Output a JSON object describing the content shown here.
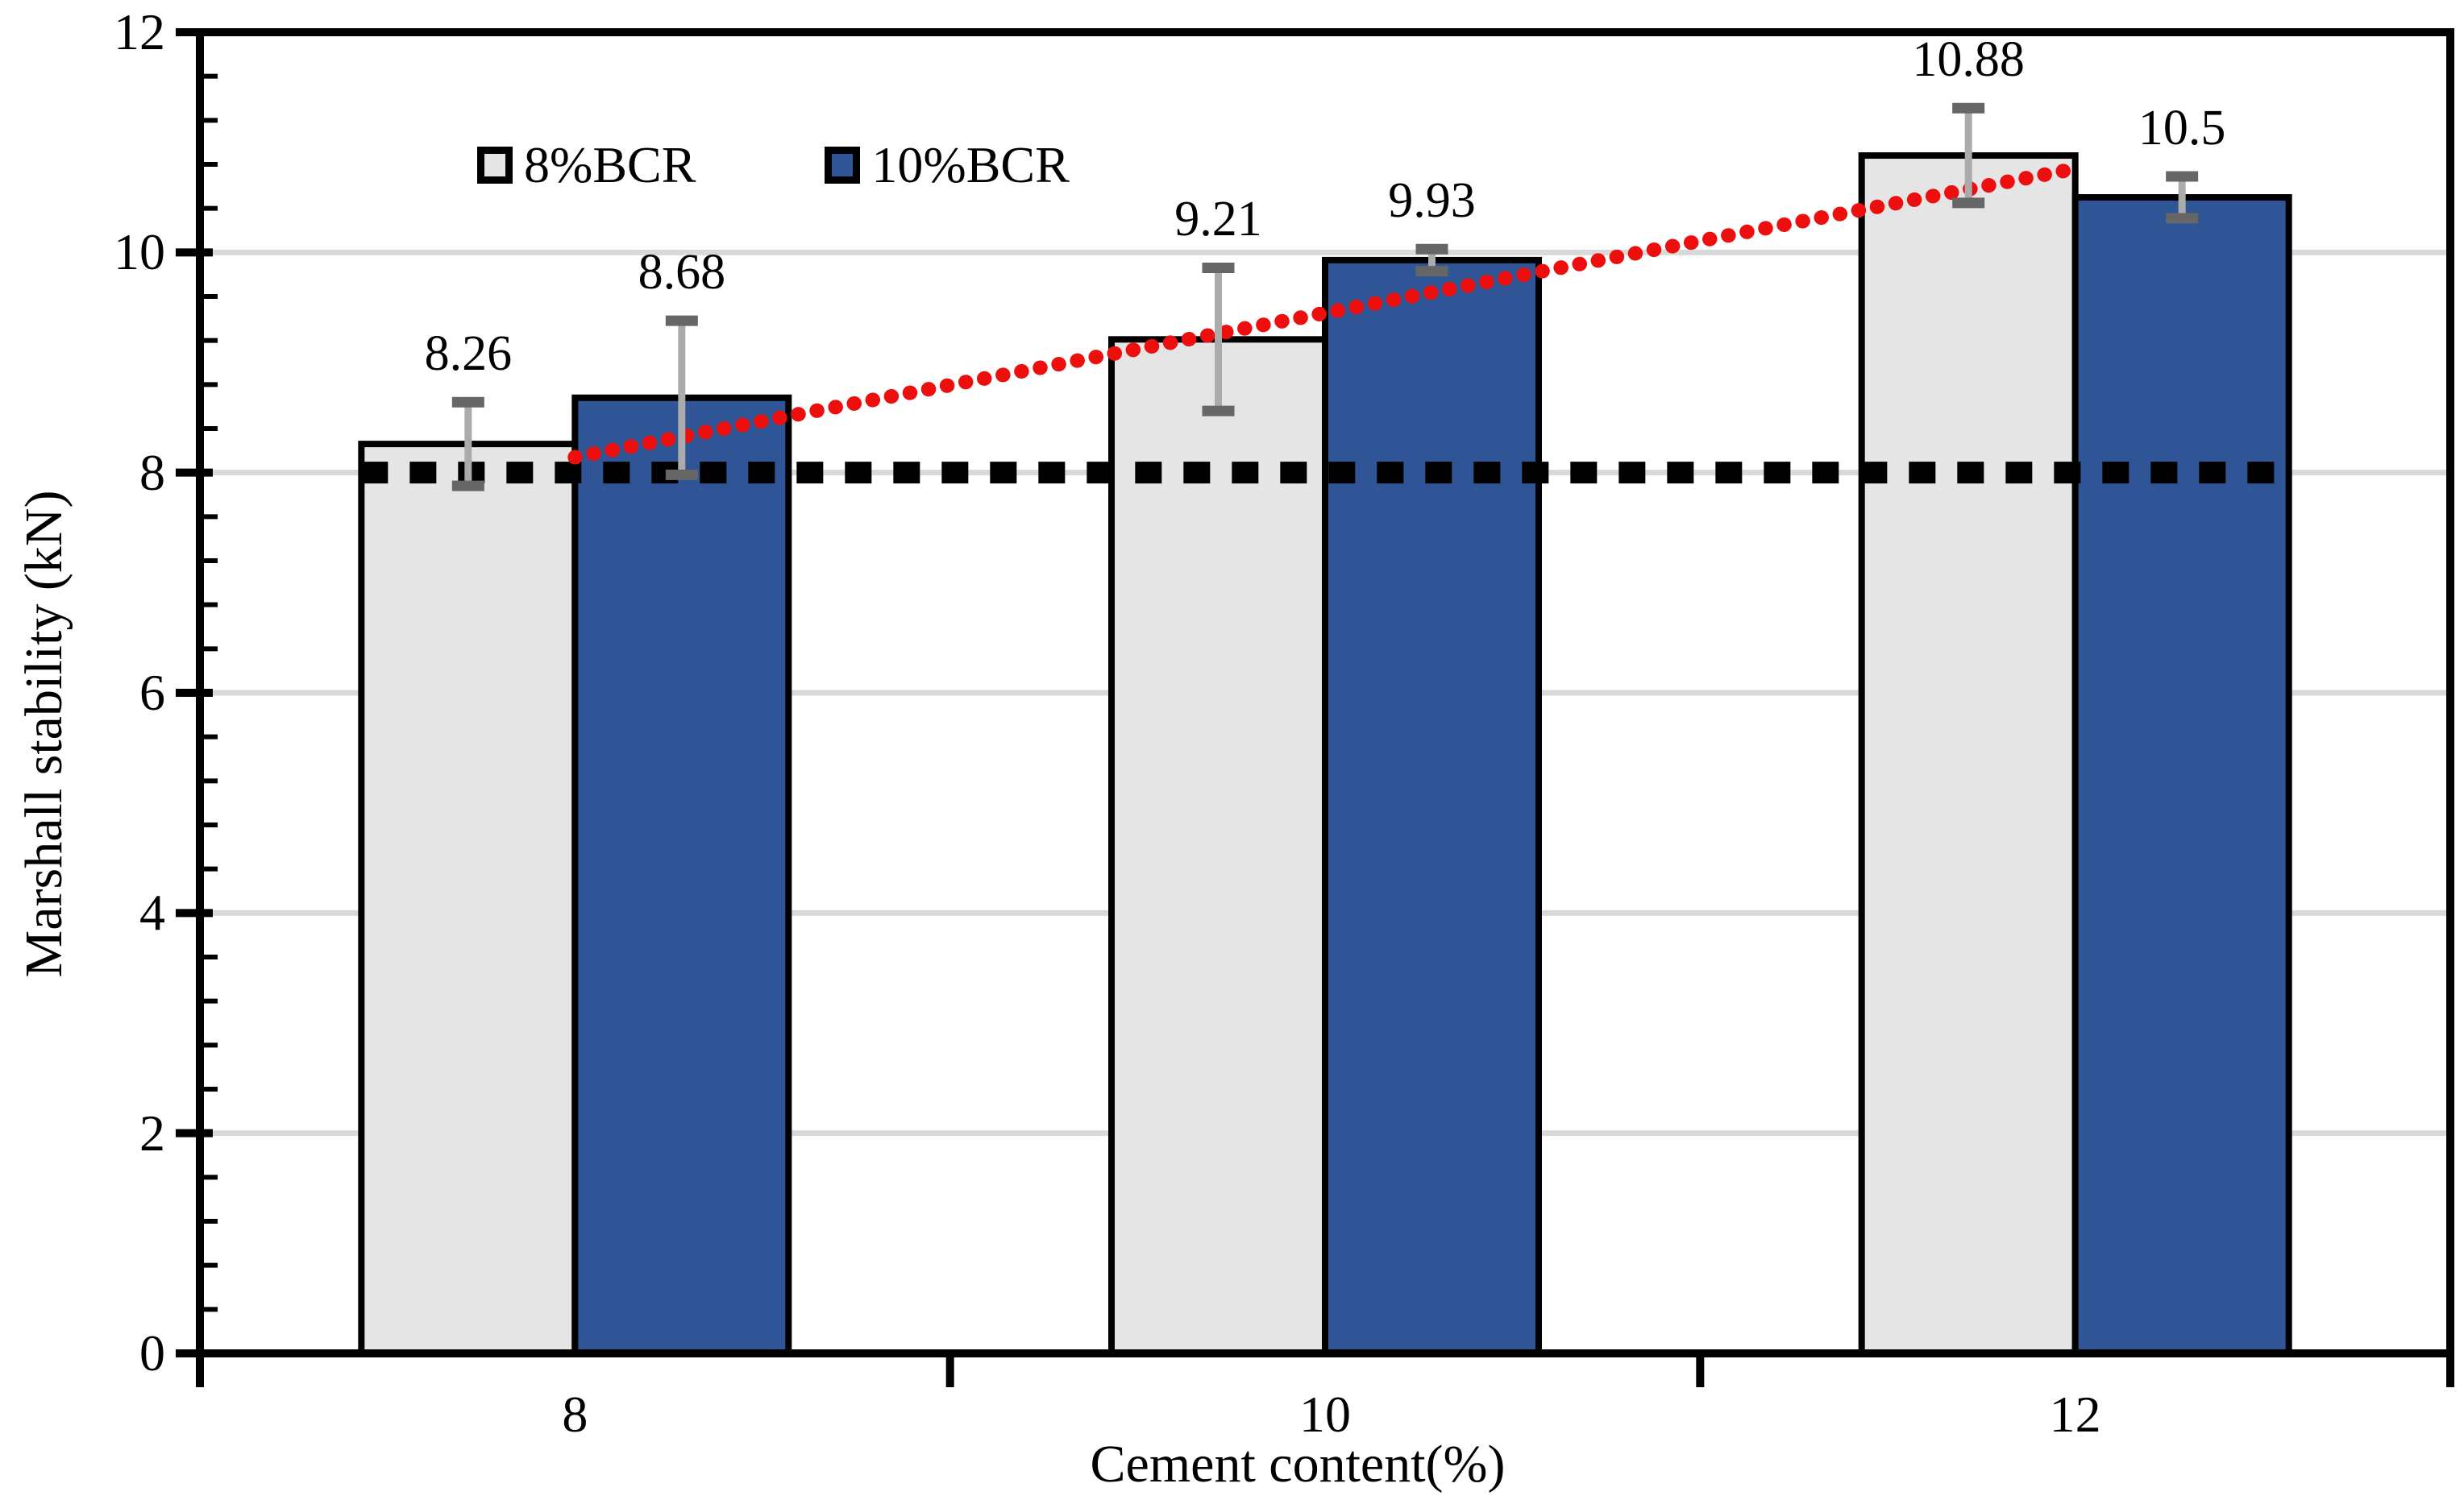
{
  "chart_data": {
    "type": "bar",
    "title": "",
    "xlabel": "Cement content(%)",
    "ylabel": "Marshall stability (kN)",
    "categories": [
      "8",
      "10",
      "12"
    ],
    "series": [
      {
        "name": "8%BCR",
        "color": "#E6E5E5",
        "values": [
          8.26,
          9.21,
          10.88
        ],
        "data_labels": [
          "8.26",
          "9.21",
          "10.88"
        ],
        "error_plus_minus": [
          0.38,
          0.65,
          0.43
        ]
      },
      {
        "name": "10%BCR",
        "color": "#2F5596",
        "values": [
          8.68,
          9.93,
          10.5
        ],
        "data_labels": [
          "8.68",
          "9.93",
          "10.5"
        ],
        "error_plus_minus": [
          0.7,
          0.1,
          0.19
        ]
      }
    ],
    "y_axis": {
      "min": 0,
      "max": 12,
      "major_unit": 2,
      "minor_unit": 0.4,
      "tick_labels": [
        "0",
        "2",
        "4",
        "6",
        "8",
        "10",
        "12"
      ]
    },
    "x_axis": {
      "tick_labels": [
        "8",
        "10",
        "12"
      ]
    },
    "gridlines": {
      "horizontal_at": [
        2,
        4,
        6,
        8,
        10
      ],
      "color": "#D9D9D9"
    },
    "threshold_line": {
      "value": 8,
      "style": "dashed",
      "color": "#000000"
    },
    "trendline": {
      "series": "8%BCR",
      "type": "linear",
      "style": "dotted",
      "color": "#ED0E0E",
      "start_value": 8.14,
      "end_value": 10.76
    },
    "error_bar_colors": {
      "stem": "#ABABAB",
      "cap": "#666666"
    },
    "legend": {
      "position": "top-center",
      "entries": [
        "8%BCR",
        "10%BCR"
      ]
    },
    "bar_border_color": "#000000",
    "axis_color": "#000000"
  }
}
